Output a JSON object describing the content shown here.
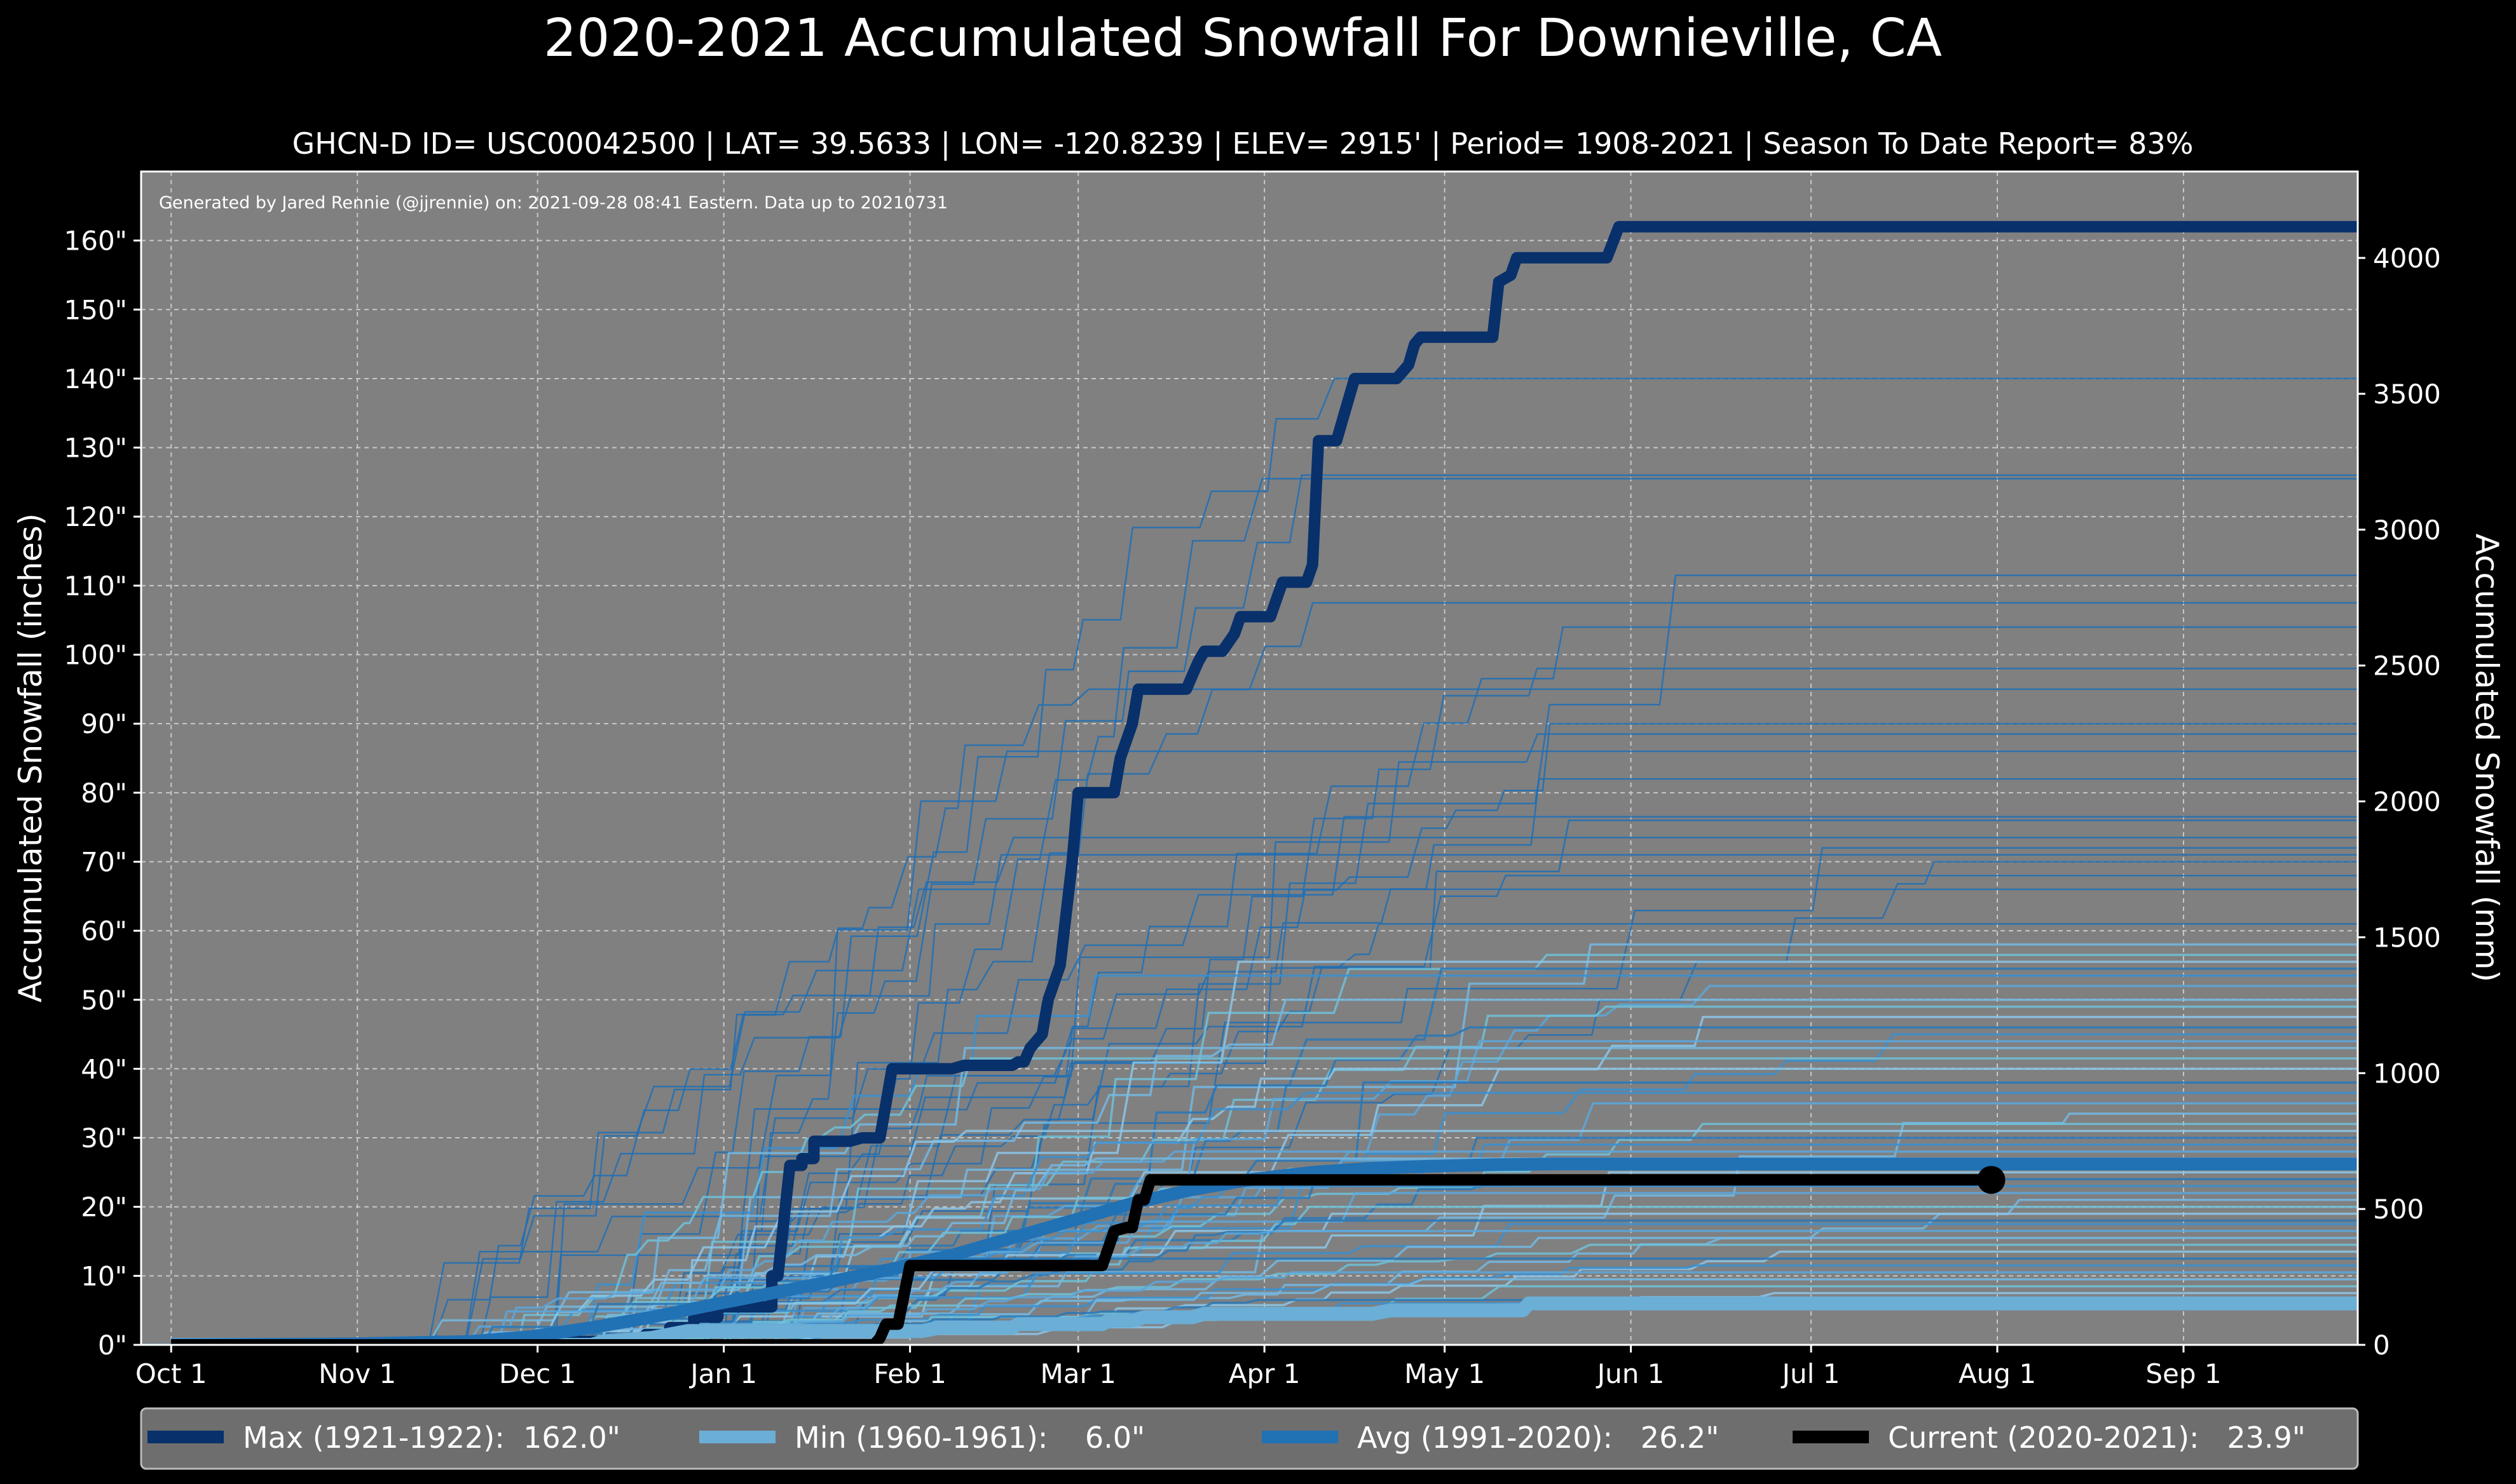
{
  "chart_data": {
    "type": "line",
    "title": "2020-2021 Accumulated Snowfall For Downieville, CA",
    "subtitle": "GHCN-D ID= USC00042500 | LAT= 39.5633 | LON= -120.8239 | ELEV= 2915' | Period= 1908-2021 | Season To Date Report= 83%",
    "credit": "Generated by Jared Rennie (@jjrennie) on: 2021-09-28 08:41 Eastern. Data up to 20210731",
    "ylabel": "Accumulated Snowfall (inches)",
    "ylabel_right": "Accumulated Snowfall (mm)",
    "ylim": [
      0,
      170
    ],
    "ylim_right_mm": [
      0,
      4318
    ],
    "grid": true,
    "legend_position": "bottom",
    "x_ticks": [
      {
        "day": 0,
        "label": "Oct 1"
      },
      {
        "day": 31,
        "label": "Nov 1"
      },
      {
        "day": 61,
        "label": "Dec 1"
      },
      {
        "day": 92,
        "label": "Jan 1"
      },
      {
        "day": 123,
        "label": "Feb 1"
      },
      {
        "day": 151,
        "label": "Mar 1"
      },
      {
        "day": 182,
        "label": "Apr 1"
      },
      {
        "day": 212,
        "label": "May 1"
      },
      {
        "day": 243,
        "label": "Jun 1"
      },
      {
        "day": 273,
        "label": "Jul 1"
      },
      {
        "day": 304,
        "label": "Aug 1"
      },
      {
        "day": 335,
        "label": "Sep 1"
      }
    ],
    "xlim_days": [
      -5,
      364
    ],
    "y_ticks": [
      {
        "value": 0,
        "label": "0\""
      },
      {
        "value": 10,
        "label": "10\""
      },
      {
        "value": 20,
        "label": "20\""
      },
      {
        "value": 30,
        "label": "30\""
      },
      {
        "value": 40,
        "label": "40\""
      },
      {
        "value": 50,
        "label": "50\""
      },
      {
        "value": 60,
        "label": "60\""
      },
      {
        "value": 70,
        "label": "70\""
      },
      {
        "value": 80,
        "label": "80\""
      },
      {
        "value": 90,
        "label": "90\""
      },
      {
        "value": 100,
        "label": "100\""
      },
      {
        "value": 110,
        "label": "110\""
      },
      {
        "value": 120,
        "label": "120\""
      },
      {
        "value": 130,
        "label": "130\""
      },
      {
        "value": 140,
        "label": "140\""
      },
      {
        "value": 150,
        "label": "150\""
      },
      {
        "value": 160,
        "label": "160\""
      }
    ],
    "y_ticks_right": [
      {
        "mm": 0,
        "label": "0"
      },
      {
        "mm": 500,
        "label": "500"
      },
      {
        "mm": 1000,
        "label": "1000"
      },
      {
        "mm": 1500,
        "label": "1500"
      },
      {
        "mm": 2000,
        "label": "2000"
      },
      {
        "mm": 2500,
        "label": "2500"
      },
      {
        "mm": 3000,
        "label": "3000"
      },
      {
        "mm": 3500,
        "label": "3500"
      },
      {
        "mm": 4000,
        "label": "4000"
      }
    ],
    "historical_season_totals": [
      140,
      126,
      125.5,
      111.5,
      107.5,
      104,
      98,
      95,
      90,
      88.5,
      86,
      82,
      76.5,
      76,
      73.5,
      72,
      71,
      70,
      68,
      66,
      61,
      58,
      56.5,
      55.5,
      54.5,
      53.5,
      52,
      50,
      49,
      47.5,
      46,
      45,
      44,
      43,
      41.5,
      40,
      38,
      36.5,
      35,
      33.5,
      32,
      31,
      30,
      29,
      28,
      27,
      26,
      25,
      24,
      23,
      22,
      21,
      20,
      19,
      18,
      17.5,
      16.5,
      15.5,
      14.5,
      13.5,
      12.5,
      11.5,
      10.5,
      9.5,
      8.5,
      7.5,
      6.5,
      6
    ],
    "series": [
      {
        "name": "Max (1921-1922)",
        "total_label": "162.0\"",
        "color": "#08306b",
        "points": [
          [
            0,
            0
          ],
          [
            44,
            0
          ],
          [
            44,
            0.5
          ],
          [
            79,
            0.5
          ],
          [
            79,
            1.5
          ],
          [
            83,
            1.5
          ],
          [
            83,
            2.5
          ],
          [
            87,
            2.5
          ],
          [
            87,
            4
          ],
          [
            91,
            4
          ],
          [
            91,
            5.5
          ],
          [
            100,
            5.5
          ],
          [
            100,
            10
          ],
          [
            101,
            10
          ],
          [
            103,
            26
          ],
          [
            105,
            26
          ],
          [
            105,
            27
          ],
          [
            107,
            27
          ],
          [
            107,
            29.5
          ],
          [
            113,
            29.5
          ],
          [
            115,
            30
          ],
          [
            118,
            30
          ],
          [
            119,
            35
          ],
          [
            120,
            40
          ],
          [
            130,
            40
          ],
          [
            132,
            40.5
          ],
          [
            140,
            40.5
          ],
          [
            141,
            41
          ],
          [
            142,
            41
          ],
          [
            143,
            43
          ],
          [
            144,
            44
          ],
          [
            145,
            45
          ],
          [
            146,
            50
          ],
          [
            148,
            55
          ],
          [
            150,
            70
          ],
          [
            151,
            80
          ],
          [
            157,
            80
          ],
          [
            158,
            85
          ],
          [
            160,
            90
          ],
          [
            161,
            95
          ],
          [
            169,
            95
          ],
          [
            170,
            97
          ],
          [
            171,
            99
          ],
          [
            172,
            100.5
          ],
          [
            175,
            100.5
          ],
          [
            177,
            103
          ],
          [
            178,
            105.5
          ],
          [
            183,
            105.5
          ],
          [
            184,
            108
          ],
          [
            185,
            110.5
          ],
          [
            189,
            110.5
          ],
          [
            190,
            113
          ],
          [
            191,
            131
          ],
          [
            194,
            131
          ],
          [
            196,
            137
          ],
          [
            197,
            140
          ],
          [
            204,
            140
          ],
          [
            205,
            141
          ],
          [
            206,
            142
          ],
          [
            207,
            145
          ],
          [
            208,
            146
          ],
          [
            220,
            146
          ],
          [
            221,
            154
          ],
          [
            223,
            155
          ],
          [
            224,
            157.5
          ],
          [
            239,
            157.5
          ],
          [
            241,
            162
          ],
          [
            370,
            162
          ]
        ]
      },
      {
        "name": "Min (1960-1961)",
        "total_label": "6.0\"",
        "color": "#6baed6",
        "points": [
          [
            0,
            0
          ],
          [
            70,
            0
          ],
          [
            72,
            0.5
          ],
          [
            80,
            1
          ],
          [
            83,
            1.5
          ],
          [
            86,
            2
          ],
          [
            125,
            2
          ],
          [
            128,
            2.5
          ],
          [
            140,
            2.5
          ],
          [
            141,
            3
          ],
          [
            155,
            3
          ],
          [
            156,
            3.5
          ],
          [
            160,
            3.5
          ],
          [
            162,
            4
          ],
          [
            170,
            4
          ],
          [
            172,
            4.5
          ],
          [
            200,
            4.5
          ],
          [
            203,
            5
          ],
          [
            225,
            5
          ],
          [
            226,
            6
          ],
          [
            370,
            6
          ]
        ]
      },
      {
        "name": "Avg (1991-2020)",
        "total_label": "26.2\"",
        "color": "#2171b5",
        "points": [
          [
            0,
            0
          ],
          [
            30,
            0.15
          ],
          [
            50,
            0.5
          ],
          [
            60,
            1.2
          ],
          [
            70,
            2.5
          ],
          [
            80,
            4
          ],
          [
            90,
            5.8
          ],
          [
            100,
            7.5
          ],
          [
            110,
            9.2
          ],
          [
            120,
            11
          ],
          [
            130,
            13
          ],
          [
            140,
            15.5
          ],
          [
            150,
            18
          ],
          [
            160,
            20.5
          ],
          [
            170,
            22.5
          ],
          [
            180,
            24
          ],
          [
            190,
            25
          ],
          [
            200,
            25.6
          ],
          [
            210,
            25.9
          ],
          [
            220,
            26.1
          ],
          [
            230,
            26.2
          ],
          [
            370,
            26.2
          ]
        ]
      },
      {
        "name": "Current (2020-2021)",
        "total_label": "23.9\"",
        "color": "#000000",
        "points": [
          [
            0,
            0
          ],
          [
            117,
            0
          ],
          [
            118,
            1
          ],
          [
            119,
            3
          ],
          [
            121,
            3
          ],
          [
            123,
            11.5
          ],
          [
            155,
            11.5
          ],
          [
            157,
            16.5
          ],
          [
            159,
            17
          ],
          [
            160,
            17
          ],
          [
            161,
            21
          ],
          [
            162,
            21
          ],
          [
            163,
            23.9
          ],
          [
            303,
            23.9
          ]
        ],
        "end_marker": true
      }
    ]
  },
  "legend": {
    "entries": [
      {
        "label": "Max (1921-1922):  162.0\"",
        "color": "#08306b"
      },
      {
        "label": "Min (1960-1961):    6.0\"",
        "color": "#6baed6"
      },
      {
        "label": "Avg (1991-2020):   26.2\"",
        "color": "#2171b5"
      },
      {
        "label": "Current (2020-2021):   23.9\"",
        "color": "#000000"
      }
    ]
  },
  "colors": {
    "background": "#000000",
    "plot_background": "#808080",
    "grid": "#c0c0c0",
    "text": "#ffffff",
    "legend_background": "#6e6e6e"
  }
}
